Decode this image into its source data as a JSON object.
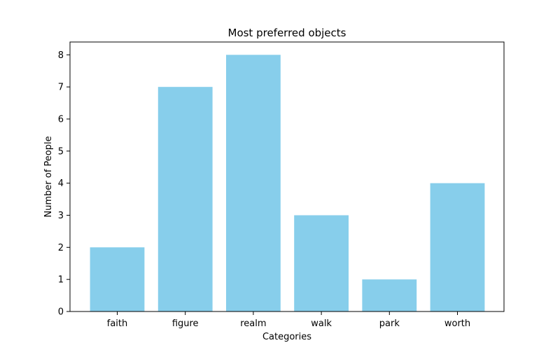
{
  "chart_data": {
    "type": "bar",
    "title": "Most preferred objects",
    "xlabel": "Categories",
    "ylabel": "Number of People",
    "categories": [
      "faith",
      "figure",
      "realm",
      "walk",
      "park",
      "worth"
    ],
    "values": [
      2,
      7,
      8,
      3,
      1,
      4
    ],
    "ylim": [
      0,
      8.4
    ],
    "yticks": [
      0,
      1,
      2,
      3,
      4,
      5,
      6,
      7,
      8
    ],
    "grid": false,
    "legend": "none",
    "colors": {
      "bar": "#87ceeb",
      "axes": "#000000",
      "background": "#ffffff"
    }
  }
}
